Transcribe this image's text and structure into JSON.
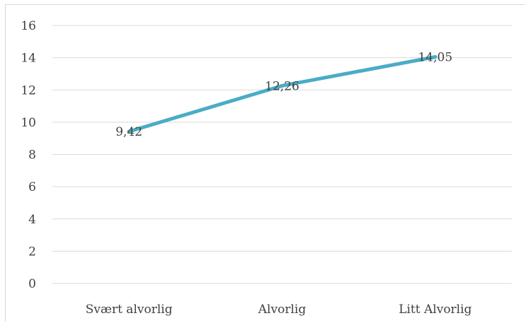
{
  "chart_data": {
    "type": "line",
    "title": "",
    "xlabel": "",
    "ylabel": "",
    "categories": [
      "Svært alvorlig",
      "Alvorlig",
      "Litt Alvorlig"
    ],
    "series": [
      {
        "values": [
          9.42,
          12.26,
          14.05
        ],
        "color": "#4bacc6"
      }
    ],
    "data_labels": [
      "9,42",
      "12,26",
      "14,05"
    ],
    "ylim": [
      0,
      16
    ],
    "yticks": [
      0,
      2,
      4,
      6,
      8,
      10,
      12,
      14,
      16
    ],
    "ytick_labels": [
      "0",
      "2",
      "4",
      "6",
      "8",
      "10",
      "12",
      "14",
      "16"
    ],
    "grid": true,
    "legend": "none",
    "colors": {
      "line": "#4bacc6",
      "grid": "#d9d9d9",
      "text": "#404040"
    }
  }
}
